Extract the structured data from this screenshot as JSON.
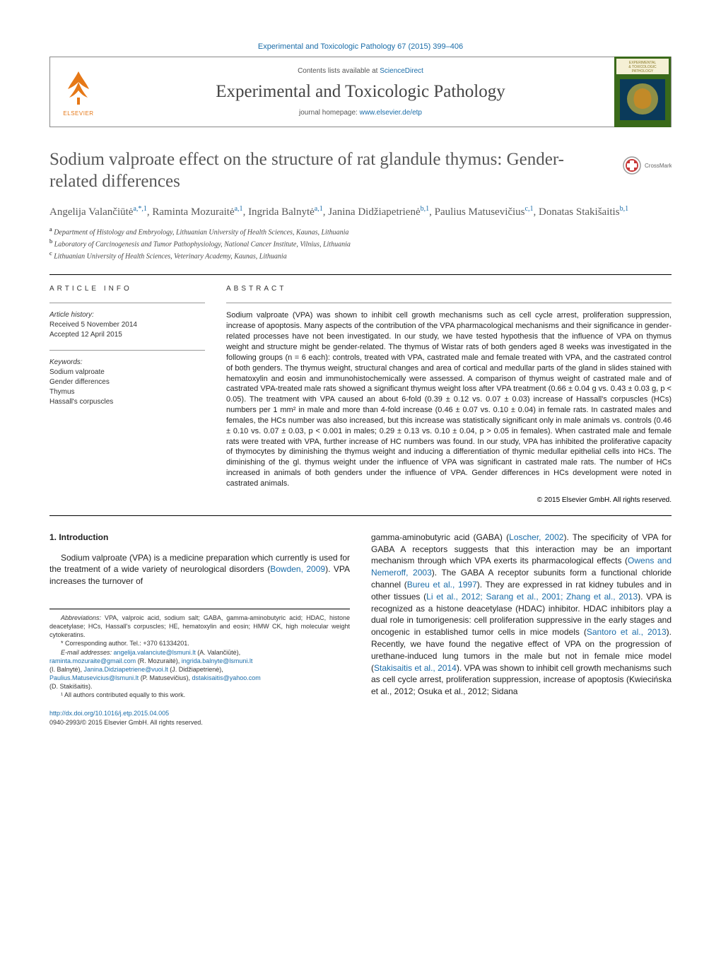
{
  "header": {
    "running_head": "Experimental and Toxicologic Pathology 67 (2015) 399–406",
    "contents_prefix": "Contents lists available at ",
    "contents_link": "ScienceDirect",
    "journal_name": "Experimental and Toxicologic Pathology",
    "homepage_prefix": "journal homepage: ",
    "homepage_link": "www.elsevier.de/etp",
    "elsevier_label": "ELSEVIER",
    "cover_label_top": "EXPERIMENTAL",
    "cover_label_mid": "& TOXICOLOGIC",
    "cover_label_bot": "PATHOLOGY",
    "crossmark_label": "CrossMark"
  },
  "title": "Sodium valproate effect on the structure of rat glandule thymus: Gender-related differences",
  "authors_html": "Angelija Valančiūtė<sup>a,*,1</sup>, Raminta Mozuraitė<sup>a,1</sup>, Ingrida Balnytė<sup>a,1</sup>, Janina Didžiapetrienė<sup>b,1</sup>, Paulius Matusevičius<sup>c,1</sup>, Donatas Stakišaitis<sup>b,1</sup>",
  "affiliations": [
    {
      "sup": "a",
      "text": "Department of Histology and Embryology, Lithuanian University of Health Sciences, Kaunas, Lithuania"
    },
    {
      "sup": "b",
      "text": "Laboratory of Carcinogenesis and Tumor Pathophysiology, National Cancer Institute, Vilnius, Lithuania"
    },
    {
      "sup": "c",
      "text": "Lithuanian University of Health Sciences, Veterinary Academy, Kaunas, Lithuania"
    }
  ],
  "article_info": {
    "heading": "ARTICLE INFO",
    "history_label": "Article history:",
    "received": "Received 5 November 2014",
    "accepted": "Accepted 12 April 2015",
    "keywords_label": "Keywords:",
    "keywords": [
      "Sodium valproate",
      "Gender differences",
      "Thymus",
      "Hassall's corpuscles"
    ]
  },
  "abstract": {
    "heading": "ABSTRACT",
    "text": "Sodium valproate (VPA) was shown to inhibit cell growth mechanisms such as cell cycle arrest, proliferation suppression, increase of apoptosis. Many aspects of the contribution of the VPA pharmacological mechanisms and their significance in gender-related processes have not been investigated. In our study, we have tested hypothesis that the influence of VPA on thymus weight and structure might be gender-related. The thymus of Wistar rats of both genders aged 8 weeks was investigated in the following groups (n = 6 each): controls, treated with VPA, castrated male and female treated with VPA, and the castrated control of both genders. The thymus weight, structural changes and area of cortical and medullar parts of the gland in slides stained with hematoxylin and eosin and immunohistochemically were assessed. A comparison of thymus weight of castrated male and of castrated VPA-treated male rats showed a significant thymus weight loss after VPA treatment (0.66 ± 0.04 g vs. 0.43 ± 0.03 g, p < 0.05). The treatment with VPA caused an about 6-fold (0.39 ± 0.12 vs. 0.07 ± 0.03) increase of Hassall's corpuscles (HCs) numbers per 1 mm² in male and more than 4-fold increase (0.46 ± 0.07 vs. 0.10 ± 0.04) in female rats. In castrated males and females, the HCs number was also increased, but this increase was statistically significant only in male animals vs. controls (0.46 ± 0.10 vs. 0.07 ± 0.03, p < 0.001 in males; 0.29 ± 0.13 vs. 0.10 ± 0.04, p > 0.05 in females). When castrated male and female rats were treated with VPA, further increase of HC numbers was found. In our study, VPA has inhibited the proliferative capacity of thymocytes by diminishing the thymus weight and inducing a differentiation of thymic medullar epithelial cells into HCs. The diminishing of the gl. thymus weight under the influence of VPA was significant in castrated male rats. The number of HCs increased in animals of both genders under the influence of VPA. Gender differences in HCs development were noted in castrated animals.",
    "copyright": "© 2015 Elsevier GmbH. All rights reserved."
  },
  "intro": {
    "heading": "1. Introduction",
    "col1": "Sodium valproate (VPA) is a medicine preparation which currently is used for the treatment of a wide variety of neurological disorders (Bowden, 2009). VPA increases the turnover of",
    "col2": "gamma-aminobutyric acid (GABA) (Loscher, 2002). The specificity of VPA for GABA A receptors suggests that this interaction may be an important mechanism through which VPA exerts its pharmacological effects (Owens and Nemeroff, 2003). The GABA A receptor subunits form a functional chloride channel (Bureu et al., 1997). They are expressed in rat kidney tubules and in other tissues (Li et al., 2012; Sarang et al., 2001; Zhang et al., 2013). VPA is recognized as a histone deacetylase (HDAC) inhibitor. HDAC inhibitors play a dual role in tumorigenesis: cell proliferation suppressive in the early stages and oncogenic in established tumor cells in mice models (Santoro et al., 2013). Recently, we have found the negative effect of VPA on the progression of urethane-induced lung tumors in the male but not in female mice model (Stakisaitis et al., 2014). VPA was shown to inhibit cell growth mechanisms such as cell cycle arrest, proliferation suppression, increase of apoptosis (Kwiecińska et al., 2012; Osuka et al., 2012; Sidana"
  },
  "footnotes": {
    "abbrev_label": "Abbreviations:",
    "abbrev_text": " VPA, valproic acid, sodium salt; GABA, gamma-aminobutyric acid; HDAC, histone deacetylase; HCs, Hassall's corpuscles; HE, hematoxylin and eosin; HMW CK, high molecular weight cytokeratins.",
    "corr_label": "* Corresponding author. Tel.: +370 61334201.",
    "email_label": "E-mail addresses:",
    "emails": [
      {
        "addr": "angelija.valanciute@lsmuni.lt",
        "who": " (A. Valančiūtė),"
      },
      {
        "addr": "raminta.mozuraite@gmail.com",
        "who": " (R. Mozuraitė), "
      },
      {
        "addr": "ingrida.balnyte@lsmuni.lt",
        "who": ""
      },
      {
        "addr": "",
        "who": "(I. Balnytė), "
      },
      {
        "addr": "Janina.Didziapetriene@vuoi.lt",
        "who": " (J. Didžiapetrienė),"
      },
      {
        "addr": "Paulius.Matusevicius@lsmuni.lt",
        "who": " (P. Matusevičius), "
      },
      {
        "addr": "dstakisaitis@yahoo.com",
        "who": ""
      },
      {
        "addr": "",
        "who": "(D. Stakišaitis)."
      }
    ],
    "contrib": "¹ All authors contributed equally to this work.",
    "doi": "http://dx.doi.org/10.1016/j.etp.2015.04.005",
    "issn": "0940-2993/© 2015 Elsevier GmbH. All rights reserved."
  },
  "colors": {
    "link": "#1a6ca8",
    "elsevier_orange": "#e67817",
    "cover_bg1": "#4a7a2a",
    "cover_bg2": "#0a3a5a"
  }
}
